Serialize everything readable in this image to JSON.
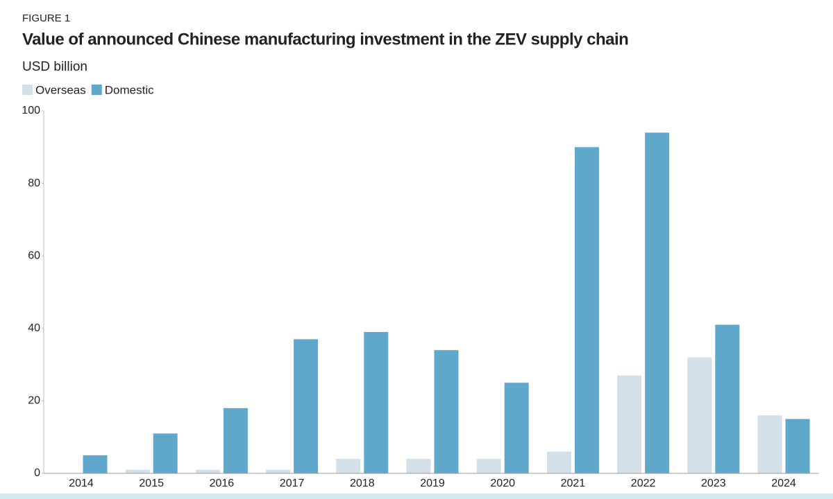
{
  "chart_data": {
    "type": "bar",
    "label": "FIGURE 1",
    "title": "Value of announced Chinese manufacturing investment in the ZEV supply chain",
    "subtitle": "USD billion",
    "categories": [
      "2014",
      "2015",
      "2016",
      "2017",
      "2018",
      "2019",
      "2020",
      "2021",
      "2022",
      "2023",
      "2024"
    ],
    "series": [
      {
        "name": "Overseas",
        "color": "#d4e0e8",
        "values": [
          0,
          1,
          1,
          1,
          4,
          4,
          4,
          6,
          27,
          32,
          16
        ]
      },
      {
        "name": "Domestic",
        "color": "#5fa8cb",
        "values": [
          5,
          11,
          18,
          37,
          39,
          34,
          25,
          90,
          94,
          41,
          15
        ]
      }
    ],
    "ylim": [
      0,
      100
    ],
    "yticks": [
      0,
      20,
      40,
      60,
      80,
      100
    ],
    "grid": false
  }
}
